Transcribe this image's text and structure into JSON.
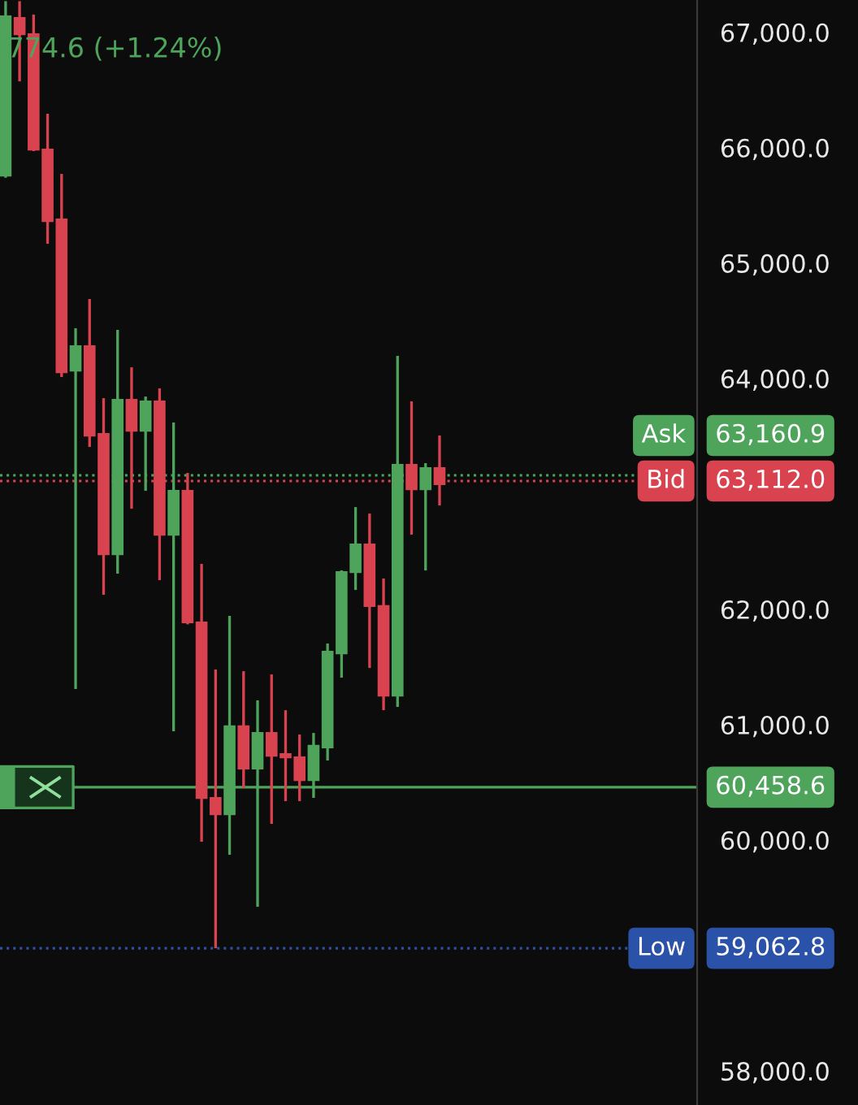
{
  "chart_data": {
    "type": "candlestick",
    "categories": [
      null,
      null,
      null,
      null,
      null,
      null,
      null,
      null,
      null,
      null,
      null,
      null,
      null,
      null,
      null,
      null,
      null,
      null,
      null,
      null,
      null,
      null,
      null,
      null,
      null,
      null,
      null,
      null,
      null,
      null,
      null,
      null,
      null,
      null,
      null,
      null,
      null,
      null,
      null,
      null,
      null,
      null,
      null,
      null,
      null,
      null,
      null,
      null,
      null,
      null
    ],
    "ohlc": [
      [
        65759,
        67270,
        65740,
        67139
      ],
      [
        67125,
        67270,
        66575,
        66984
      ],
      [
        66984,
        67153,
        65970,
        65984
      ],
      [
        65984,
        66294,
        65167,
        65364
      ],
      [
        65379,
        65773,
        64013,
        64055
      ],
      [
        64069,
        64435,
        61309,
        64280
      ],
      [
        64280,
        64689,
        63407,
        63506
      ],
      [
        63520,
        63830,
        62126,
        62478
      ],
      [
        62478,
        64421,
        62309,
        63816
      ],
      [
        63816,
        64097,
        62872,
        63548
      ],
      [
        63548,
        63844,
        63027,
        63802
      ],
      [
        63802,
        63914,
        62253,
        62647
      ],
      [
        62647,
        63619,
        60943,
        63027
      ],
      [
        63027,
        63182,
        61870,
        61887
      ],
      [
        61887,
        62394,
        59986,
        60366
      ],
      [
        60366,
        61478,
        59063,
        60225
      ],
      [
        60225,
        61943,
        59873,
        60986
      ],
      [
        60986,
        61464,
        60451,
        60620
      ],
      [
        60620,
        61211,
        59423,
        60929
      ],
      [
        60929,
        61436,
        60141,
        60732
      ],
      [
        60746,
        61126,
        60338,
        60718
      ],
      [
        60718,
        60915,
        60338,
        60521
      ],
      [
        60521,
        60929,
        60366,
        60817
      ],
      [
        60803,
        61704,
        60690,
        61633
      ],
      [
        61619,
        62337,
        61408,
        62323
      ],
      [
        62323,
        62886,
        62168,
        62563
      ],
      [
        62563,
        62830,
        61492,
        62028
      ],
      [
        62028,
        62267,
        61126,
        61253
      ],
      [
        61253,
        64196,
        61155,
        63252
      ],
      [
        63252,
        63802,
        62647,
        63041
      ],
      [
        63041,
        63267,
        62337,
        63224
      ],
      [
        63224,
        63506,
        62900,
        63084
      ],
      null,
      null,
      null,
      null,
      null,
      null,
      null,
      null,
      null,
      null,
      null,
      null,
      null,
      null,
      null,
      null,
      null,
      null
    ],
    "colors": [
      "#4ea45a",
      "#d9434f",
      "#d9434f",
      "#d9434f",
      "#d9434f",
      "#4ea45a",
      "#d9434f",
      "#d9434f",
      "#4ea45a",
      "#d9434f",
      "#4ea45a",
      "#d9434f",
      "#4ea45a",
      "#d9434f",
      "#d9434f",
      "#d9434f",
      "#4ea45a",
      "#d9434f",
      "#4ea45a",
      "#d9434f",
      "#d9434f",
      "#d9434f",
      "#4ea45a",
      "#4ea45a",
      "#4ea45a",
      "#4ea45a",
      "#d9434f",
      "#d9434f",
      "#4ea45a",
      "#d9434f",
      "#4ea45a",
      "#d9434f",
      null,
      null,
      null,
      null,
      null,
      null,
      null,
      null,
      null,
      null,
      null,
      null,
      null,
      null,
      null,
      null,
      null,
      null
    ],
    "ylim": [
      57705,
      67280
    ],
    "yticks": [
      {
        "value": 58000,
        "label": "58,000.0"
      },
      {
        "value": 60000,
        "label": "60,000.0"
      },
      {
        "value": 61000,
        "label": "61,000.0"
      },
      {
        "value": 62000,
        "label": "62,000.0"
      },
      {
        "value": 64000,
        "label": "64,000.0"
      },
      {
        "value": 65000,
        "label": "65,000.0"
      },
      {
        "value": 66000,
        "label": "66,000.0"
      },
      {
        "value": 67000,
        "label": "67,000.0"
      }
    ],
    "tick_labels": "y",
    "ref_lines": [
      {
        "axis": "y",
        "value": 63160.9,
        "label": "Ask",
        "color": "#4ea45a",
        "line_style": "dotted"
      },
      {
        "axis": "y",
        "value": 63112.0,
        "label": "Bid",
        "color": "#d9434f",
        "line_style": "dotted"
      },
      {
        "axis": "y",
        "value": 60458.6,
        "label": null,
        "color": "#4ea45a",
        "line_style": "solid"
      },
      {
        "axis": "y",
        "value": 59062.8,
        "label": "Low",
        "color": "#2a52a8",
        "line_style": "dotted"
      }
    ],
    "annotations": [
      "774.6 (+1.24%)",
      "63,160.9",
      "63,112.0",
      "60,458.6",
      "59,062.8"
    ]
  }
}
